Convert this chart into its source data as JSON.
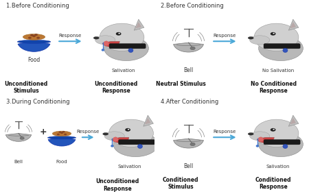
{
  "bg_color": "#ffffff",
  "divider_color": "#888888",
  "title_color": "#333333",
  "bold_label_color": "#111111",
  "arrow_color": "#4aa8d8",
  "arrow_fill": "#4aa8d8",
  "dog_body": "#cccccc",
  "dog_dark": "#aaaaaa",
  "dog_collar": "#222222",
  "dog_tag": "#3355bb",
  "drool_color": "#4477cc",
  "bell_color": "#b8b8b8",
  "bowl_color": "#2255bb",
  "food_color": "#bb7733",
  "panel_titles": [
    "1.Before Conditioning",
    "2.Before Conditioning",
    "3.During Conditioning",
    "4.After Conditioning"
  ],
  "panel1": {
    "stimulus_label": "Food",
    "salivation_label": "Salivation",
    "bottom_left": "Unconditioned\nStimulus",
    "bottom_right": "Unconditioned\nResponse"
  },
  "panel2": {
    "stimulus_label": "Bell",
    "salivation_label": "No Salivation",
    "bottom_left": "Neutral Stimulus",
    "bottom_right": "No Conditioned\nResponse"
  },
  "panel3": {
    "stimulus_label1": "Bell",
    "stimulus_label2": "Food",
    "salivation_label": "Salivation",
    "bottom_right": "Unconditioned\nResponse"
  },
  "panel4": {
    "stimulus_label": "Bell",
    "salivation_label": "Salivation",
    "bottom_left": "Conditioned\nStimulus",
    "bottom_right": "Conditioned\nResponse"
  }
}
